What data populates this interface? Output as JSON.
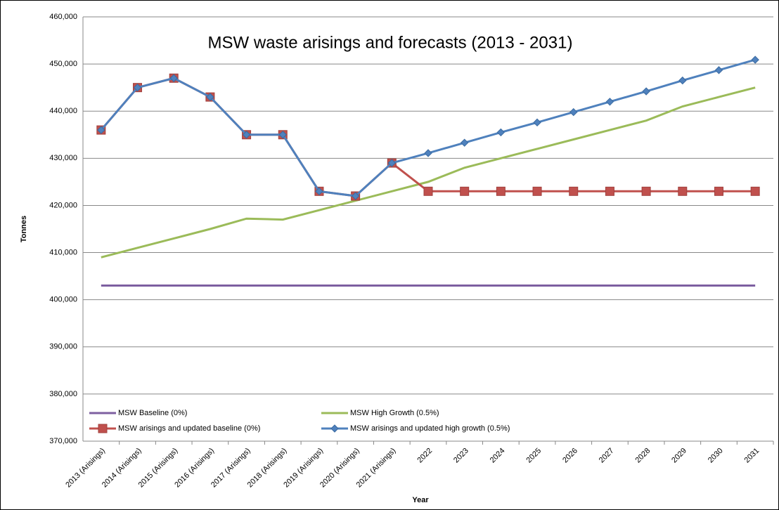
{
  "chart_data": {
    "type": "line",
    "title": "MSW waste arisings and forecasts (2013 - 2031)",
    "x_label": "Year",
    "y_label": "Tonnes",
    "categories": [
      "2013 (Arisings)",
      "2014 (Arisings)",
      "2015 (Arisings)",
      "2016 (Arisings)",
      "2017 (Arisings)",
      "2018 (Arisings)",
      "2019 (Arisings)",
      "2020 (Arisings)",
      "2021 (Arisings)",
      "2022",
      "2023",
      "2024",
      "2025",
      "2026",
      "2027",
      "2028",
      "2029",
      "2030",
      "2031"
    ],
    "series": [
      {
        "name": "MSW Baseline (0%)",
        "color": "#7d5fa0",
        "marker": "none",
        "values": [
          403000,
          403000,
          403000,
          403000,
          403000,
          403000,
          403000,
          403000,
          403000,
          403000,
          403000,
          403000,
          403000,
          403000,
          403000,
          403000,
          403000,
          403000,
          403000
        ]
      },
      {
        "name": "MSW High Growth (0.5%)",
        "color": "#9bbb59",
        "marker": "none",
        "values": [
          409000,
          411000,
          413000,
          415000,
          417200,
          417000,
          419000,
          421000,
          423000,
          425000,
          428000,
          430000,
          432000,
          434000,
          436000,
          438000,
          441000,
          443000,
          445000
        ]
      },
      {
        "name": "MSW arisings and updated baseline (0%)",
        "color": "#c0504d",
        "marker": "square",
        "values": [
          436000,
          445000,
          447000,
          443000,
          435000,
          435000,
          423000,
          422000,
          429000,
          423000,
          423000,
          423000,
          423000,
          423000,
          423000,
          423000,
          423000,
          423000,
          423000
        ]
      },
      {
        "name": "MSW arisings and updated high growth (0.5%)",
        "color": "#4f81bd",
        "marker": "diamond",
        "values": [
          436000,
          445000,
          447000,
          443000,
          435000,
          435000,
          423000,
          422000,
          429000,
          431100,
          433300,
          435500,
          437600,
          439800,
          442000,
          444200,
          446500,
          448700,
          450900
        ]
      }
    ],
    "ylim": [
      370000,
      460000
    ],
    "yticks": [
      {
        "value": 370000,
        "label": "370,000"
      },
      {
        "value": 380000,
        "label": "380,000"
      },
      {
        "value": 390000,
        "label": "390,000"
      },
      {
        "value": 400000,
        "label": "400,000"
      },
      {
        "value": 410000,
        "label": "410,000"
      },
      {
        "value": 420000,
        "label": "420,000"
      },
      {
        "value": 430000,
        "label": "430,000"
      },
      {
        "value": 440000,
        "label": "440,000"
      },
      {
        "value": 450000,
        "label": "450,000"
      },
      {
        "value": 460000,
        "label": "460,000"
      }
    ],
    "grid": true,
    "legend": "bottom"
  }
}
